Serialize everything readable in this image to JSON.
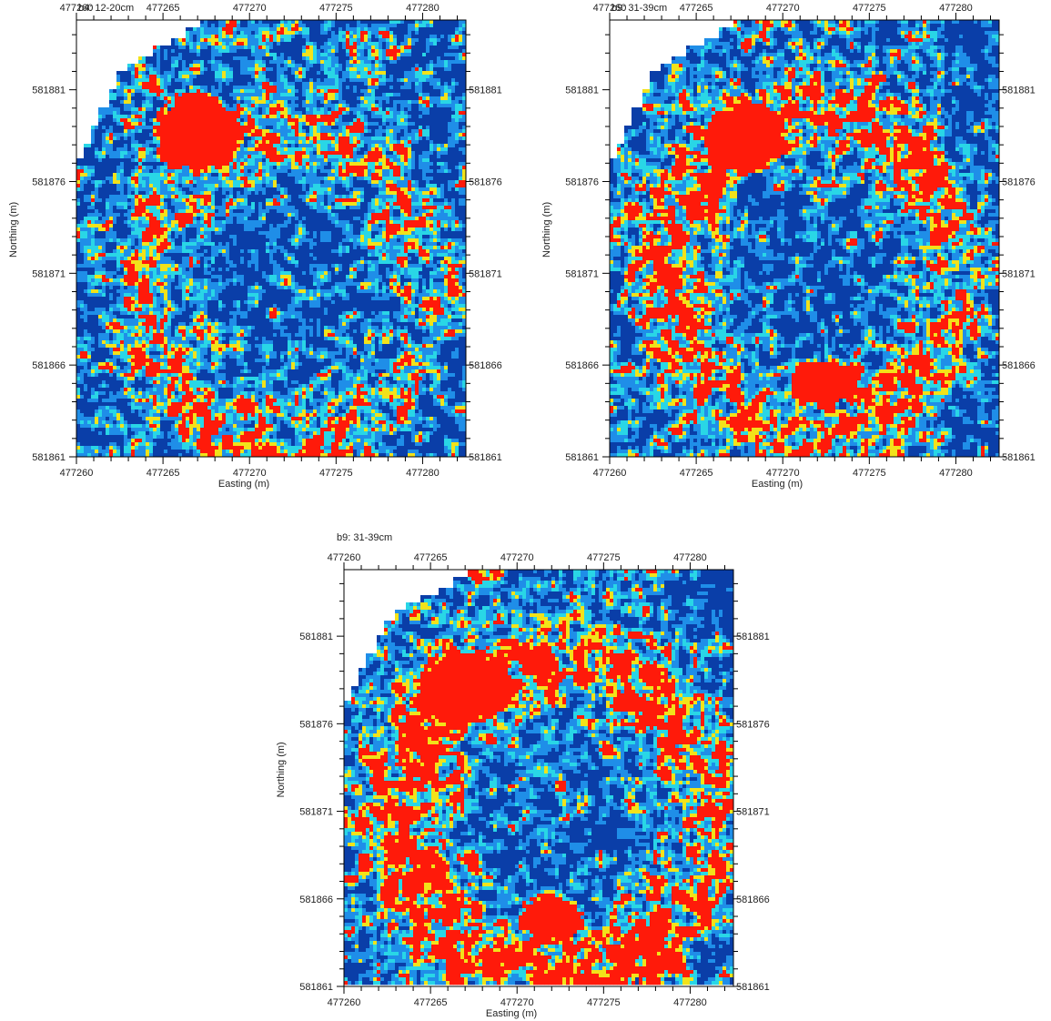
{
  "maps": [
    {
      "title": "b4: 12-20cm",
      "x_axis_label": "Easting (m)",
      "y_axis_label": "Northing (m)",
      "x_ticks": [
        "477260",
        "477265",
        "477270",
        "477275",
        "477280"
      ],
      "y_ticks": [
        "581881",
        "581876",
        "581871",
        "581866",
        "581861"
      ],
      "right_y_ticks": [
        "581881",
        "581876",
        "581871",
        "581866",
        "581861"
      ],
      "show_top_ticks": true,
      "show_bottom_ticks": true,
      "show_left_ticks": true,
      "show_right_ticks": true,
      "show_x_title": true,
      "show_y_title": true,
      "show_top_numbers": true,
      "show_bottom_numbers": true
    },
    {
      "title": "b9: 31-39cm",
      "x_axis_label": "Easting (m)",
      "y_axis_label": "Northing (m)",
      "x_ticks": [
        "477260",
        "477265",
        "477270",
        "477275",
        "477280"
      ],
      "y_ticks": [
        "581881",
        "581876",
        "581871",
        "581866",
        "581861"
      ],
      "right_y_ticks": [
        "581881",
        "581876",
        "581871",
        "581866",
        "581861"
      ],
      "show_top_ticks": true,
      "show_bottom_ticks": true,
      "show_left_ticks": true,
      "show_right_ticks": true,
      "show_x_title": true,
      "show_y_title": true,
      "show_top_numbers": true,
      "show_bottom_numbers": true
    },
    {
      "title": "b9: 31-39cm",
      "x_axis_label": "Easting (m)",
      "y_axis_label": "Northing (m)",
      "x_ticks": [
        "477260",
        "477265",
        "477270",
        "477275",
        "477280"
      ],
      "y_ticks": [
        "581881",
        "581876",
        "581871",
        "581866",
        "581861"
      ],
      "right_y_ticks": [
        "581881",
        "581876",
        "581871",
        "581866",
        "581861"
      ],
      "show_top_ticks": true,
      "show_bottom_ticks": true,
      "show_left_ticks": true,
      "show_right_ticks": true,
      "show_x_title": true,
      "show_y_title": true,
      "show_top_numbers": true,
      "show_bottom_numbers": true
    }
  ],
  "colors": {
    "low": "#0a3ea8",
    "mid_low": "#1f8ee8",
    "mid": "#29d6e6",
    "mid_high": "#f2e21a",
    "high": "#ff1a0a"
  }
}
